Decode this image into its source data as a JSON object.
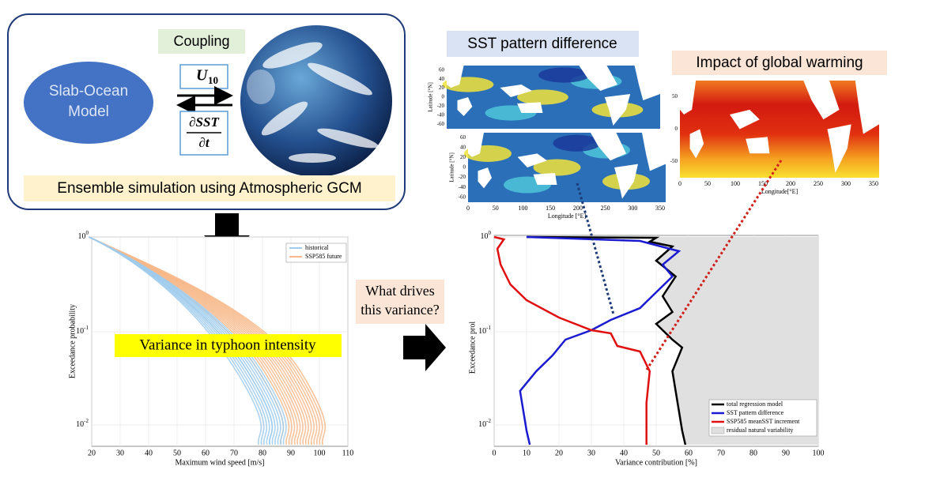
{
  "model_box": {
    "ocean_model_1": "Slab-Ocean",
    "ocean_model_2": "Model",
    "coupling": "Coupling",
    "u10": "U",
    "u10_sub": "10",
    "dsst": "∂SST",
    "dt": "∂t",
    "ensemble": "Ensemble simulation using Atmospheric GCM"
  },
  "left_plot": {
    "xticks": [
      "20",
      "30",
      "40",
      "50",
      "60",
      "70",
      "80",
      "90",
      "100",
      "110"
    ],
    "yticks": [
      {
        "base": "10",
        "exp": "0"
      },
      {
        "base": "10",
        "exp": "-1"
      },
      {
        "base": "10",
        "exp": "-2"
      }
    ],
    "xlabel": "Maximum wind speed [m/s]",
    "ylabel": "Exceedance probability",
    "legend": [
      "historical",
      "SSP585 future"
    ],
    "highlight": "Variance in typhoon intensity"
  },
  "question": [
    "What drives",
    "this variance?"
  ],
  "right_plot": {
    "xticks": [
      "0",
      "10",
      "20",
      "30",
      "40",
      "50",
      "60",
      "70",
      "80",
      "90",
      "100"
    ],
    "yticks": [
      {
        "base": "10",
        "exp": "0"
      },
      {
        "base": "10",
        "exp": "-1"
      },
      {
        "base": "10",
        "exp": "-2"
      }
    ],
    "xlabel": "Variance contribution [%]",
    "ylabel": "Exceedance prol",
    "legend": [
      "total regression model",
      "SST pattern difference",
      "SSP585 meanSST increment",
      "residual natural variability"
    ]
  },
  "sst_label": "SST pattern difference",
  "sst_map_top": {
    "yticks": [
      "60",
      "40",
      "20",
      "0",
      "-20",
      "-40",
      "-60"
    ],
    "ylabel": "Latitude [°N]"
  },
  "sst_map_bottom": {
    "yticks": [
      "60",
      "40",
      "20",
      "0",
      "-20",
      "-40",
      "-60"
    ],
    "xticks": [
      "0",
      "50",
      "100",
      "150",
      "200",
      "250",
      "300",
      "350"
    ],
    "ylabel": "Latitude [°N]",
    "xlabel": "Longitude [°E]"
  },
  "warming_label": "Impact of global warming",
  "warming_map": {
    "yticks": [
      "50",
      "0",
      "-50"
    ],
    "xticks": [
      "0",
      "50",
      "100",
      "150",
      "200",
      "250",
      "300",
      "350"
    ],
    "xlabel": "Longitude[°E]"
  }
}
